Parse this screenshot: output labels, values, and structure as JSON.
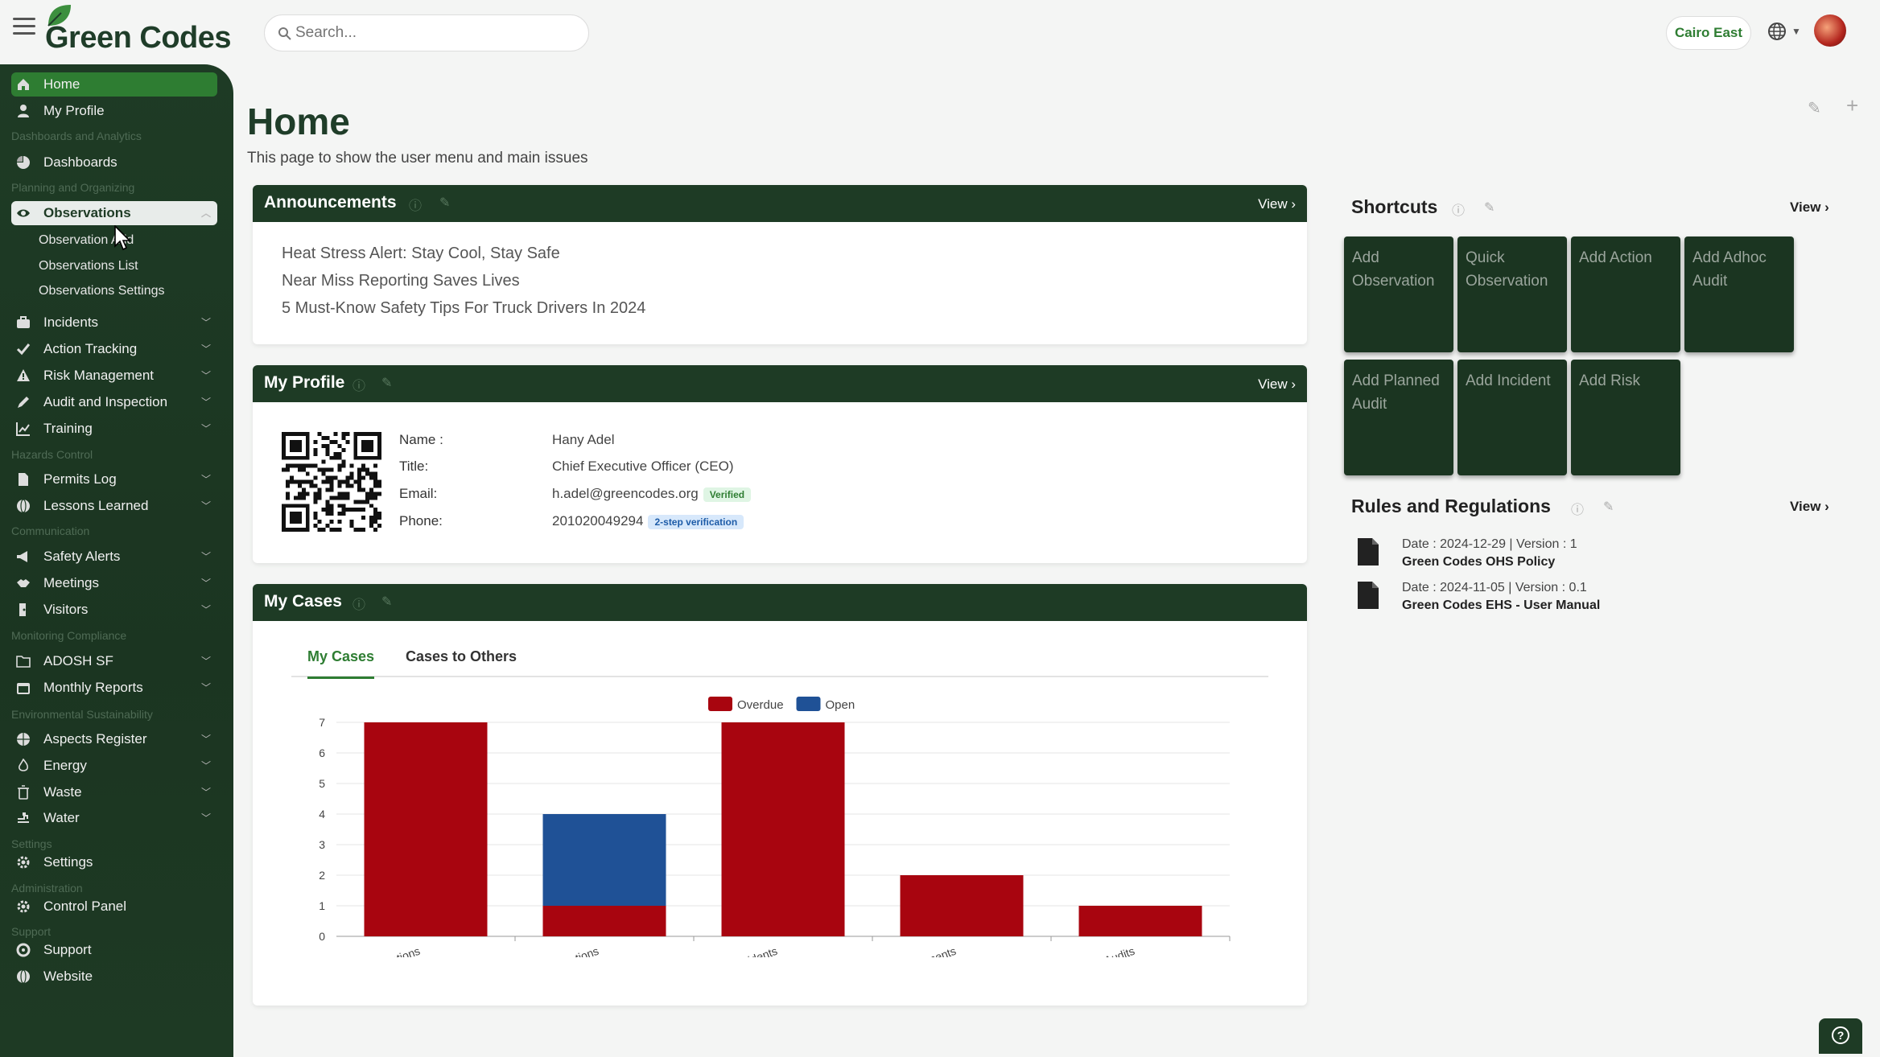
{
  "app": {
    "name": "Green Codes"
  },
  "search": {
    "placeholder": "Search..."
  },
  "header": {
    "branch": "Cairo East"
  },
  "sidebar": {
    "home": "Home",
    "my_profile": "My Profile",
    "sec_dashboards": "Dashboards and Analytics",
    "dashboards": "Dashboards",
    "sec_planning": "Planning and Organizing",
    "observations": "Observations",
    "obs_sub": [
      "Observation Add",
      "Observations List",
      "Observations Settings"
    ],
    "incidents": "Incidents",
    "action_tracking": "Action Tracking",
    "risk_management": "Risk Management",
    "audit": "Audit and Inspection",
    "training": "Training",
    "sec_hazards": "Hazards Control",
    "permits": "Permits Log",
    "lessons": "Lessons Learned",
    "sec_comm": "Communication",
    "safety_alerts": "Safety Alerts",
    "meetings": "Meetings",
    "visitors": "Visitors",
    "sec_monitoring": "Monitoring Compliance",
    "adosh": "ADOSH SF",
    "monthly": "Monthly Reports",
    "sec_env": "Environmental Sustainability",
    "aspects": "Aspects Register",
    "energy": "Energy",
    "waste": "Waste",
    "water": "Water",
    "sec_settings": "Settings",
    "settings": "Settings",
    "sec_admin": "Administration",
    "control_panel": "Control Panel",
    "sec_support": "Support",
    "support": "Support",
    "website": "Website"
  },
  "page": {
    "title": "Home",
    "subtitle": "This page to show the user menu and main issues"
  },
  "announcements": {
    "title": "Announcements",
    "view": "View ›",
    "items": [
      "Heat Stress Alert: Stay Cool, Stay Safe",
      "Near Miss Reporting Saves Lives",
      "5 Must-Know Safety Tips For Truck Drivers In 2024"
    ]
  },
  "profile": {
    "title": "My Profile",
    "view": "View ›",
    "name_label": "Name :",
    "name": "Hany Adel",
    "title_label": "Title:",
    "job_title": "Chief Executive Officer (CEO)",
    "email_label": "Email:",
    "email": "h.adel@greencodes.org",
    "email_badge": "Verified",
    "phone_label": "Phone:",
    "phone": "201020049294",
    "phone_badge": "2-step verification"
  },
  "cases": {
    "title": "My Cases",
    "tabs": [
      "My Cases",
      "Cases to Others"
    ]
  },
  "chart_data": {
    "type": "bar",
    "stacked": true,
    "categories": [
      "Actions",
      "Observations",
      "Incidents",
      "Risk Assessments",
      "Audits"
    ],
    "series": [
      {
        "name": "Overdue",
        "values": [
          7,
          1,
          7,
          2,
          1
        ],
        "color": "#a8050f"
      },
      {
        "name": "Open",
        "values": [
          0,
          3,
          0,
          0,
          0
        ],
        "color": "#1f5196"
      }
    ],
    "ylim": [
      0,
      7
    ],
    "yticks": [
      0,
      1,
      2,
      3,
      4,
      5,
      6,
      7
    ],
    "legend": "top-center",
    "grid": true
  },
  "shortcuts": {
    "title": "Shortcuts",
    "view": "View ›",
    "tiles": [
      "Add Observation",
      "Quick Observation",
      "Add Action",
      "Add Adhoc Audit",
      "Add Planned Audit",
      "Add Incident",
      "Add Risk"
    ]
  },
  "rules": {
    "title": "Rules and Regulations",
    "view": "View ›",
    "items": [
      {
        "meta": "Date : 2024-12-29 |    Version : 1",
        "name": "Green Codes OHS Policy"
      },
      {
        "meta": "Date : 2024-11-05 |    Version : 0.1",
        "name": "Green Codes EHS - User Manual"
      }
    ]
  }
}
